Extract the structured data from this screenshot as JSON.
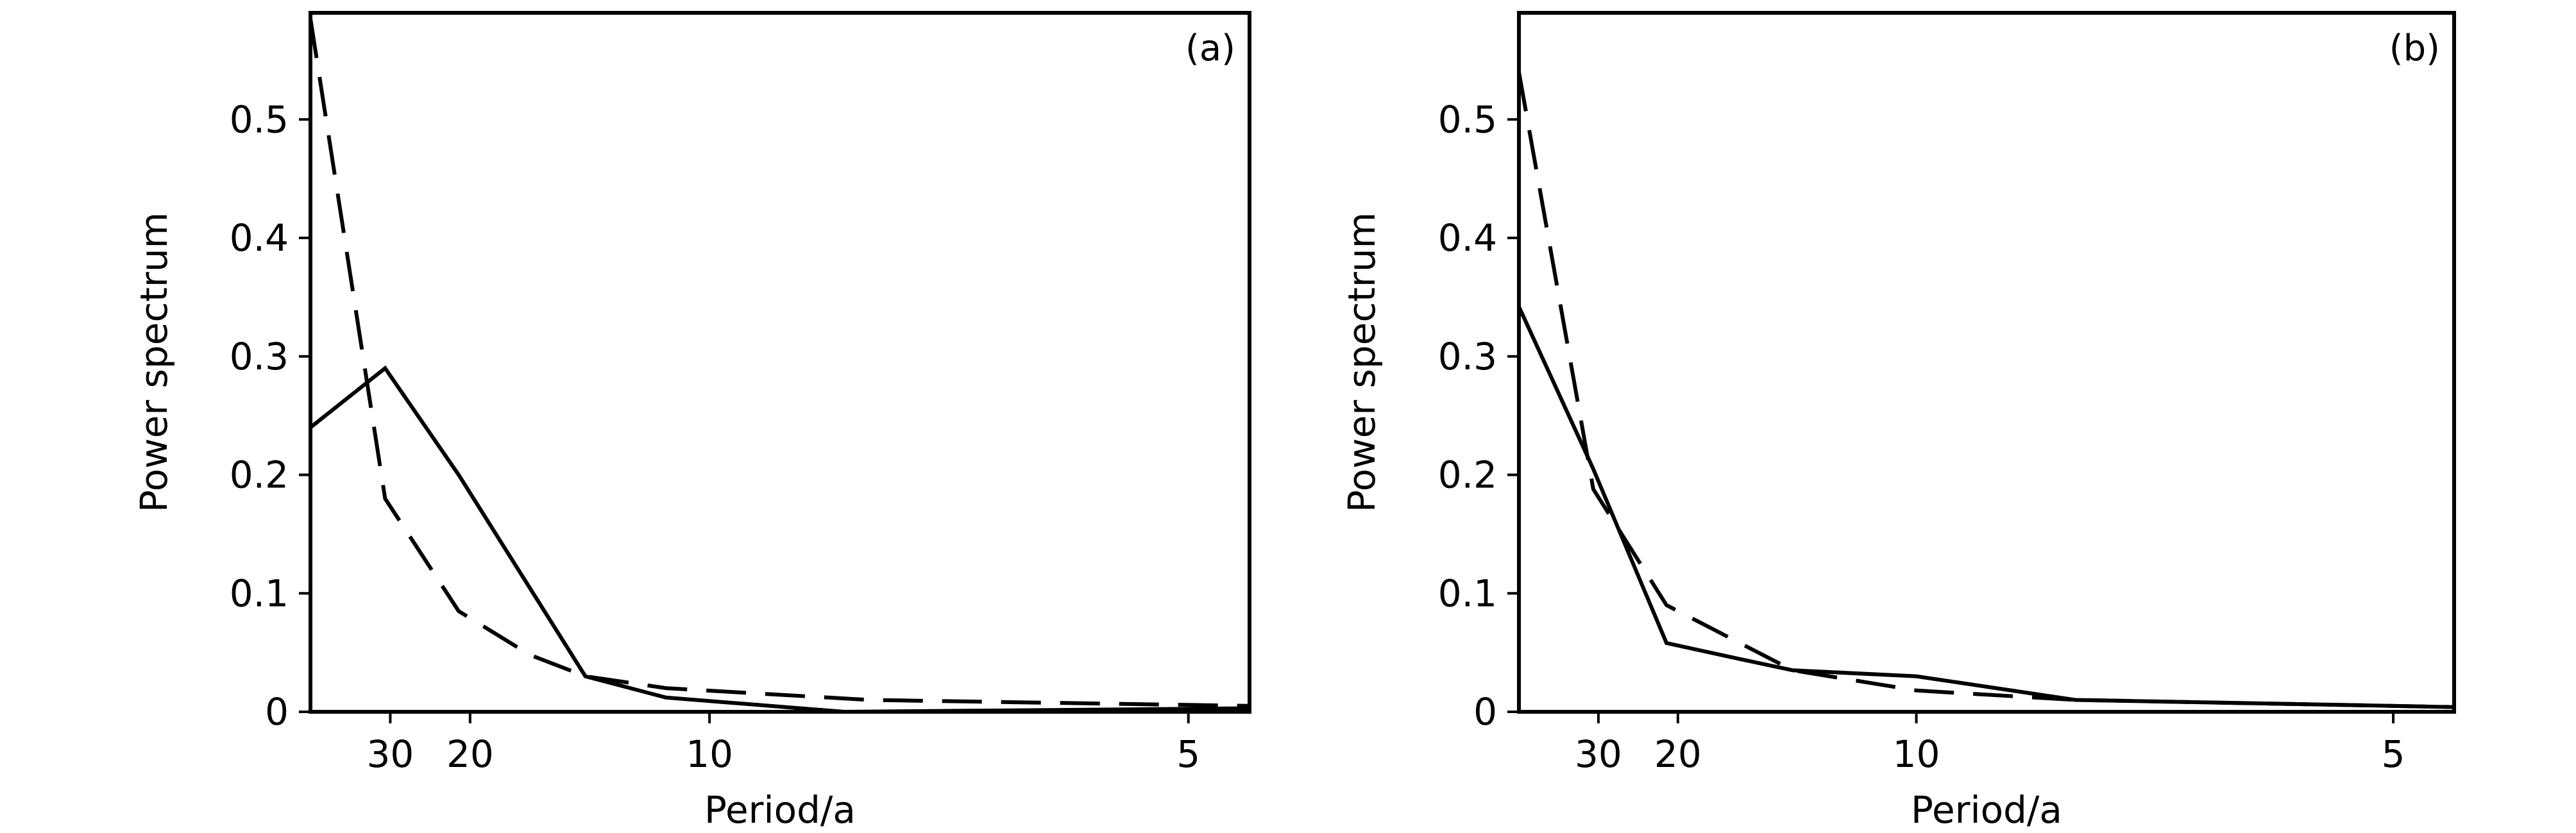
{
  "chart_data": [
    {
      "type": "line",
      "panel_label": "(a)",
      "xlabel": "Period/a",
      "ylabel": "Power spectrum",
      "x_scale": "reciprocal",
      "xlim": [
        60,
        4.7
      ],
      "ylim": [
        0,
        0.59
      ],
      "x_ticks": [
        30,
        20,
        10,
        5
      ],
      "x_tick_labels": [
        "30",
        "20",
        "10",
        "5"
      ],
      "y_ticks": [
        0,
        0.1,
        0.2,
        0.3,
        0.4,
        0.5
      ],
      "y_tick_labels": [
        "0",
        "0.1",
        "0.2",
        "0.3",
        "0.4",
        "0.5"
      ],
      "grid": false,
      "series": [
        {
          "style": "solid",
          "color": "#000000",
          "points": [
            {
              "x": 60,
              "y": 0.24
            },
            {
              "x": 31,
              "y": 0.29
            },
            {
              "x": 21,
              "y": 0.2
            },
            {
              "x": 13.5,
              "y": 0.03
            },
            {
              "x": 11,
              "y": 0.012
            },
            {
              "x": 7.8,
              "y": 0.0
            },
            {
              "x": 4.7,
              "y": 0.003
            }
          ]
        },
        {
          "style": "dashed",
          "color": "#000000",
          "points": [
            {
              "x": 60,
              "y": 0.585
            },
            {
              "x": 31,
              "y": 0.18
            },
            {
              "x": 21,
              "y": 0.085
            },
            {
              "x": 16,
              "y": 0.048
            },
            {
              "x": 13.5,
              "y": 0.03
            },
            {
              "x": 11,
              "y": 0.02
            },
            {
              "x": 7.5,
              "y": 0.01
            },
            {
              "x": 4.7,
              "y": 0.005
            }
          ]
        }
      ]
    },
    {
      "type": "line",
      "panel_label": "(b)",
      "xlabel": "Period/a",
      "ylabel": "Power spectrum",
      "x_scale": "reciprocal",
      "xlim": [
        60,
        4.7
      ],
      "ylim": [
        0,
        0.59
      ],
      "x_ticks": [
        30,
        20,
        10,
        5
      ],
      "x_tick_labels": [
        "30",
        "20",
        "10",
        "5"
      ],
      "y_ticks": [
        0,
        0.1,
        0.2,
        0.3,
        0.4,
        0.5
      ],
      "y_tick_labels": [
        "0",
        "0.1",
        "0.2",
        "0.3",
        "0.4",
        "0.5"
      ],
      "grid": false,
      "series": [
        {
          "style": "solid",
          "color": "#000000",
          "points": [
            {
              "x": 60,
              "y": 0.342
            },
            {
              "x": 31,
              "y": 0.205
            },
            {
              "x": 21,
              "y": 0.058
            },
            {
              "x": 16,
              "y": 0.045
            },
            {
              "x": 13.5,
              "y": 0.035
            },
            {
              "x": 10,
              "y": 0.03
            },
            {
              "x": 7.5,
              "y": 0.01
            },
            {
              "x": 4.7,
              "y": 0.004
            }
          ]
        },
        {
          "style": "dashed",
          "color": "#000000",
          "points": [
            {
              "x": 60,
              "y": 0.54
            },
            {
              "x": 31,
              "y": 0.188
            },
            {
              "x": 21,
              "y": 0.09
            },
            {
              "x": 13.5,
              "y": 0.035
            },
            {
              "x": 10,
              "y": 0.018
            },
            {
              "x": 7.5,
              "y": 0.01
            },
            {
              "x": 4.7,
              "y": 0.004
            }
          ]
        }
      ]
    }
  ]
}
